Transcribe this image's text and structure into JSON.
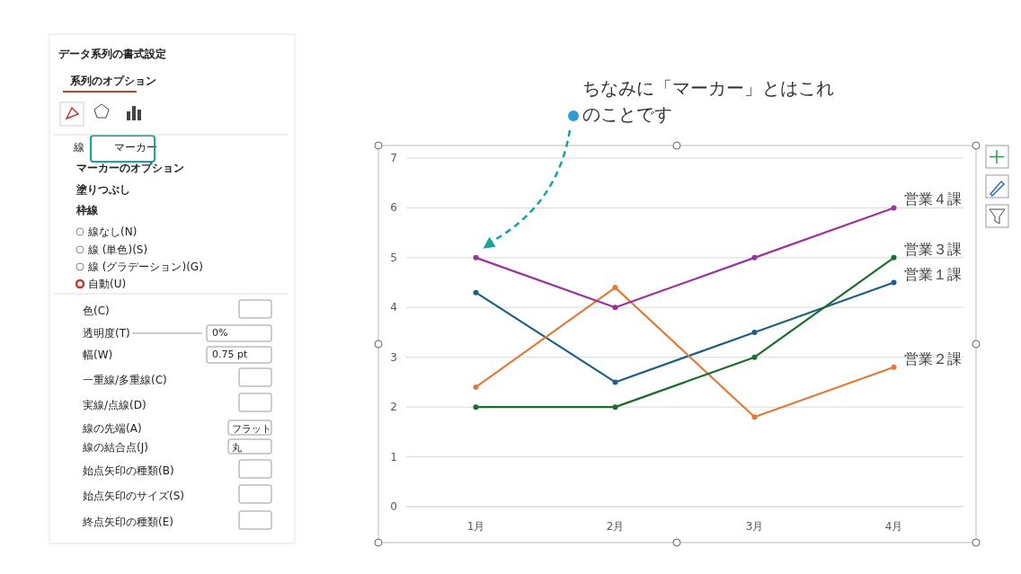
{
  "chart_data": [
    {
      "type": "other",
      "title": "データ系列の書式設定",
      "annotations": [
        "系列のオプション",
        "線",
        "マーカー",
        "マーカーのオプション",
        "塗りつぶし",
        "枠線",
        "線なし(N)",
        "線 (単色)(S)",
        "線 (グラデーション)(G)",
        "自動(U)",
        "色(C)",
        "透明度(T)",
        "0%",
        "幅(W)",
        "0.75 pt",
        "一重線/多重線(C)",
        "実線/点線(D)",
        "線の先端(A)",
        "フラット",
        "線の結合点(J)",
        "丸",
        "始点矢印の種類(B)",
        "始点矢印のサイズ(S)",
        "終点矢印の種類(E)"
      ]
    },
    {
      "type": "line",
      "categories": [
        "1月",
        "2月",
        "3月",
        "4月"
      ],
      "series": [
        {
          "name": "営業１課",
          "color": "#1f5f80",
          "values": [
            4.3,
            2.5,
            3.5,
            4.5
          ]
        },
        {
          "name": "営業２課",
          "color": "#e07b39",
          "values": [
            2.4,
            4.4,
            1.8,
            2.8
          ]
        },
        {
          "name": "営業３課",
          "color": "#1e6b2e",
          "values": [
            2,
            2,
            3,
            5
          ]
        },
        {
          "name": "営業４課",
          "color": "#9b339b",
          "values": [
            5,
            4,
            5,
            6
          ]
        }
      ],
      "ylim": [
        0,
        7
      ],
      "yticks": [
        0,
        1,
        2,
        3,
        4,
        5,
        6,
        7
      ],
      "grid": "y",
      "legend": false,
      "marker": "circle",
      "line_style": "solid",
      "annotations": [
        "ちなみに「マーカー」とはこれのことです"
      ]
    }
  ]
}
